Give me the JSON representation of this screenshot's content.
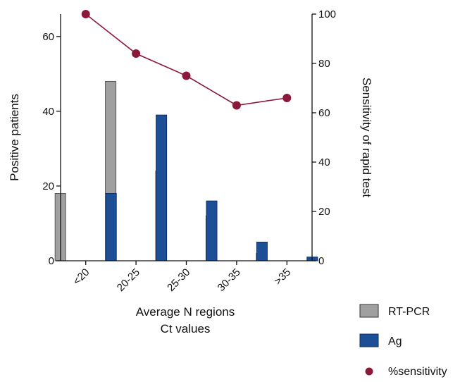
{
  "chart_data": {
    "type": "bar",
    "categories": [
      "<20",
      "20-25",
      "25-30",
      "30-35",
      ">35"
    ],
    "series": [
      {
        "name": "RT-PCR",
        "values": [
          18,
          48,
          24,
          12,
          2
        ],
        "color": "#a0a0a0",
        "axis": "left"
      },
      {
        "name": "Ag",
        "values": [
          18,
          39,
          16,
          5,
          1
        ],
        "color": "#1d4f96",
        "axis": "left"
      },
      {
        "name": "%sensitivity",
        "type": "line",
        "values": [
          100,
          84,
          75,
          63,
          66
        ],
        "color": "#8b1a3a",
        "axis": "right"
      }
    ],
    "xlabel": [
      "Average N regions",
      "Ct values"
    ],
    "ylabel_left": "Positive patients",
    "ylabel_right": "Sensitivity of rapid test",
    "ylim_left": [
      0,
      66
    ],
    "yticks_left": [
      "0",
      "20",
      "40",
      "60"
    ],
    "ylim_right": [
      0,
      100
    ],
    "yticks_right": [
      "0",
      "20",
      "40",
      "60",
      "80",
      "100"
    ],
    "legend_placement": "bottom-right",
    "grid": false
  }
}
